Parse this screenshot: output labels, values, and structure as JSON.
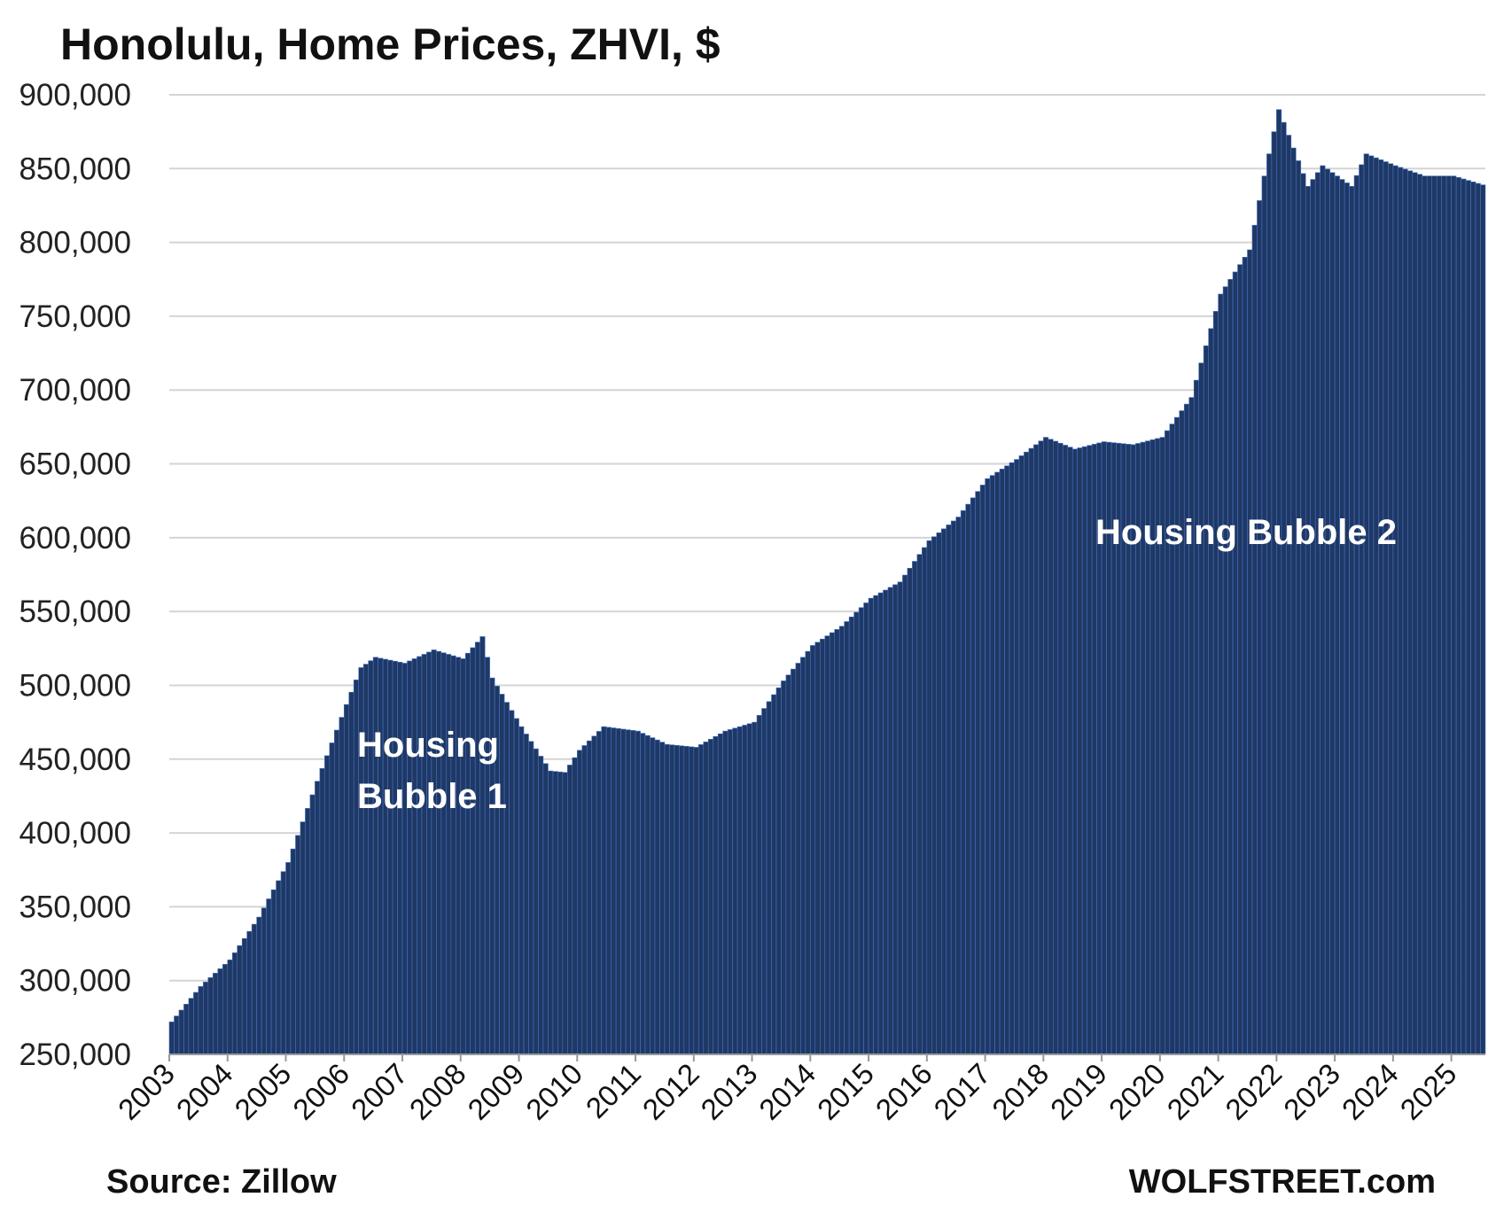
{
  "chart_data": {
    "type": "bar",
    "title": "Honolulu, Home Prices, ZHVI, $",
    "xlabel": "",
    "ylabel": "",
    "ylim": [
      250000,
      900000
    ],
    "yticks": [
      250000,
      300000,
      350000,
      400000,
      450000,
      500000,
      550000,
      600000,
      650000,
      700000,
      750000,
      800000,
      850000,
      900000
    ],
    "ytick_labels": [
      "250,000",
      "300,000",
      "350,000",
      "400,000",
      "450,000",
      "500,000",
      "550,000",
      "600,000",
      "650,000",
      "700,000",
      "750,000",
      "800,000",
      "850,000",
      "900,000"
    ],
    "grid": true,
    "bar_color": "#1f3864",
    "bar_edge_color": "#4472c4",
    "x_labels": [
      "2003",
      "2004",
      "2005",
      "2006",
      "2007",
      "2008",
      "2009",
      "2010",
      "2011",
      "2012",
      "2013",
      "2014",
      "2015",
      "2016",
      "2017",
      "2018",
      "2019",
      "2020",
      "2021",
      "2022",
      "2023",
      "2024",
      "2025"
    ],
    "x_start": "2003-01",
    "frequency": "monthly",
    "anchors": [
      [
        "2003-01",
        272000
      ],
      [
        "2003-07",
        296000
      ],
      [
        "2004-01",
        314000
      ],
      [
        "2004-07",
        343000
      ],
      [
        "2005-01",
        380000
      ],
      [
        "2005-07",
        435000
      ],
      [
        "2006-01",
        487000
      ],
      [
        "2006-04",
        512000
      ],
      [
        "2006-07",
        519000
      ],
      [
        "2007-01",
        515000
      ],
      [
        "2007-07",
        524000
      ],
      [
        "2008-01",
        518000
      ],
      [
        "2008-05",
        533000
      ],
      [
        "2008-07",
        505000
      ],
      [
        "2009-01",
        472000
      ],
      [
        "2009-07",
        442000
      ],
      [
        "2009-10",
        441000
      ],
      [
        "2010-01",
        456000
      ],
      [
        "2010-06",
        472000
      ],
      [
        "2011-01",
        469000
      ],
      [
        "2011-07",
        460000
      ],
      [
        "2012-01",
        458000
      ],
      [
        "2012-07",
        469000
      ],
      [
        "2013-01",
        475000
      ],
      [
        "2013-07",
        503000
      ],
      [
        "2014-01",
        527000
      ],
      [
        "2014-07",
        540000
      ],
      [
        "2015-01",
        559000
      ],
      [
        "2015-07",
        570000
      ],
      [
        "2016-01",
        598000
      ],
      [
        "2016-07",
        614000
      ],
      [
        "2017-01",
        640000
      ],
      [
        "2017-07",
        653000
      ],
      [
        "2018-01",
        668000
      ],
      [
        "2018-07",
        660000
      ],
      [
        "2019-01",
        665000
      ],
      [
        "2019-07",
        663000
      ],
      [
        "2020-01",
        668000
      ],
      [
        "2020-07",
        695000
      ],
      [
        "2021-01",
        765000
      ],
      [
        "2021-07",
        795000
      ],
      [
        "2021-10",
        845000
      ],
      [
        "2022-01",
        890000
      ],
      [
        "2022-07",
        838000
      ],
      [
        "2022-10",
        852000
      ],
      [
        "2023-01",
        845000
      ],
      [
        "2023-04",
        838000
      ],
      [
        "2023-07",
        860000
      ],
      [
        "2024-01",
        852000
      ],
      [
        "2024-07",
        845000
      ],
      [
        "2025-01",
        845000
      ],
      [
        "2025-07",
        839000
      ]
    ],
    "annotations": [
      {
        "lines": [
          "Housing",
          "Bubble 1"
        ]
      },
      {
        "lines": [
          "Housing Bubble 2"
        ]
      }
    ]
  },
  "footer": {
    "source": "Source: Zillow",
    "brand": "WOLFSTREET.com"
  }
}
